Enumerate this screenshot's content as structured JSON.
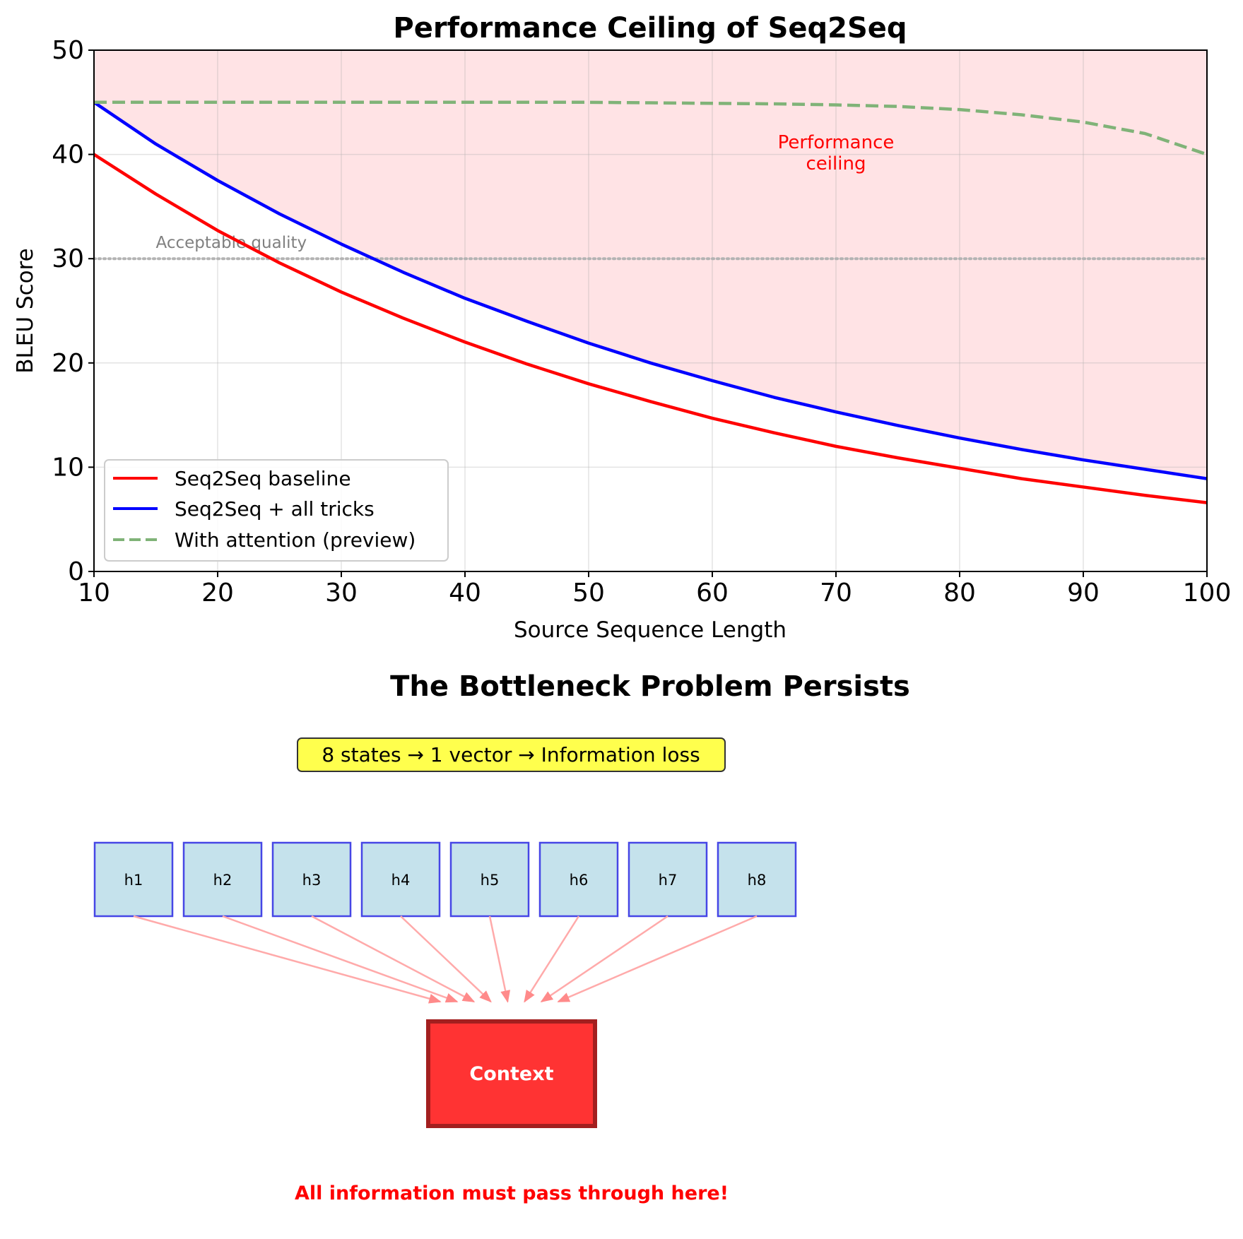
{
  "chart_data": [
    {
      "type": "line",
      "title": "Performance Ceiling of Seq2Seq",
      "xlabel": "Source Sequence Length",
      "ylabel": "BLEU Score",
      "xlim": [
        10,
        100
      ],
      "ylim": [
        0,
        50
      ],
      "xticks": [
        10,
        20,
        30,
        40,
        50,
        60,
        70,
        80,
        90,
        100
      ],
      "yticks": [
        0,
        10,
        20,
        30,
        40,
        50
      ],
      "grid": true,
      "legend_position": "lower-left",
      "x": [
        10,
        15,
        20,
        25,
        30,
        35,
        40,
        45,
        50,
        55,
        60,
        65,
        70,
        75,
        80,
        85,
        90,
        95,
        100
      ],
      "series": [
        {
          "name": "Seq2Seq baseline",
          "color": "#ff0000",
          "style": "solid",
          "values": [
            40.0,
            36.2,
            32.7,
            29.6,
            26.8,
            24.3,
            22.0,
            19.9,
            18.0,
            16.3,
            14.7,
            13.3,
            12.0,
            10.9,
            9.9,
            8.9,
            8.1,
            7.3,
            6.6
          ]
        },
        {
          "name": "Seq2Seq + all tricks",
          "color": "#0000ff",
          "style": "solid",
          "values": [
            45.0,
            41.0,
            37.5,
            34.3,
            31.4,
            28.7,
            26.2,
            24.0,
            21.9,
            20.0,
            18.3,
            16.7,
            15.3,
            14.0,
            12.8,
            11.7,
            10.7,
            9.8,
            8.9
          ]
        },
        {
          "name": "With attention (preview)",
          "color": "#80b378",
          "style": "dashed",
          "values": [
            45.0,
            45.0,
            45.0,
            45.0,
            45.0,
            45.0,
            45.0,
            45.0,
            45.0,
            44.95,
            44.9,
            44.85,
            44.75,
            44.6,
            44.3,
            43.8,
            43.1,
            42.0,
            40.0
          ]
        }
      ],
      "shaded_region": {
        "lower_series": "Seq2Seq + all tricks",
        "upper": 50,
        "color": "#ffe3e5"
      },
      "reference_line": {
        "y": 30,
        "label": "Acceptable quality",
        "color": "#b3b3b3"
      },
      "annotation": {
        "text_lines": [
          "Performance",
          "ceiling"
        ],
        "x": 70,
        "y": 39.5,
        "color": "#ff0000"
      }
    },
    {
      "type": "diagram",
      "title": "The Bottleneck Problem Persists",
      "callout": "8 states → 1 vector → Information loss",
      "callout_color": "#ffff4d",
      "states": [
        "h1",
        "h2",
        "h3",
        "h4",
        "h5",
        "h6",
        "h7",
        "h8"
      ],
      "state_fill": "#c5e2ec",
      "state_border": "#4646e6",
      "arrow_color": "#ffaaaa",
      "context_label": "Context",
      "context_fill": "#ff3333",
      "context_border": "#a31f1f",
      "footer": "All information must pass through here!",
      "footer_color": "#ff0000"
    }
  ]
}
